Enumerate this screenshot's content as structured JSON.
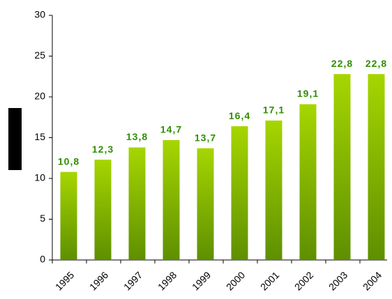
{
  "chart_data": {
    "type": "bar",
    "categories": [
      "1995",
      "1996",
      "1997",
      "1998",
      "1999",
      "2000",
      "2001",
      "2002",
      "2003",
      "2004"
    ],
    "values": [
      10.8,
      12.3,
      13.8,
      14.7,
      13.7,
      16.4,
      17.1,
      19.1,
      22.8,
      22.8
    ],
    "value_labels": [
      "10,8",
      "12,3",
      "13,8",
      "14,7",
      "13,7",
      "16,4",
      "17,1",
      "19,1",
      "22,8",
      "22,8"
    ],
    "color": "#8cc000",
    "ylim": [
      0,
      30
    ],
    "yticks": [
      0,
      5,
      10,
      15,
      20,
      25,
      30
    ]
  }
}
